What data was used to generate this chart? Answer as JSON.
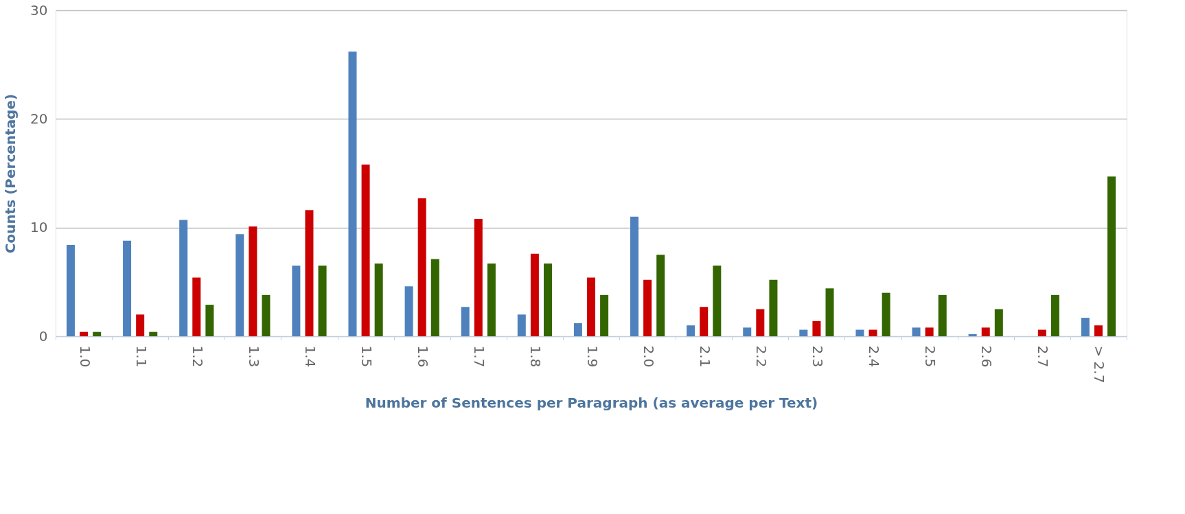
{
  "chart_data": {
    "type": "bar",
    "xlabel": "Number of Sentences per Paragraph (as average per Text)",
    "ylabel": "Counts (Percentage)",
    "categories": [
      "1.0",
      "1.1",
      "1.2",
      "1.3",
      "1.4",
      "1.5",
      "1.6",
      "1.7",
      "1.8",
      "1.9",
      "2.0",
      "2.1",
      "2.2",
      "2.3",
      "2.4",
      "2.5",
      "2.6",
      "2.7",
      "> 2.7"
    ],
    "series": [
      {
        "color": "#4f81bd",
        "values": [
          8.4,
          8.8,
          10.7,
          9.4,
          6.5,
          26.2,
          4.6,
          2.7,
          2.0,
          1.2,
          11.0,
          1.0,
          0.8,
          0.6,
          0.6,
          0.8,
          0.2,
          0,
          1.7
        ]
      },
      {
        "color": "#cc0000",
        "values": [
          0.4,
          2.0,
          5.4,
          10.1,
          11.6,
          15.8,
          12.7,
          10.8,
          7.6,
          5.4,
          5.2,
          2.7,
          2.5,
          1.4,
          0.6,
          0.8,
          0.8,
          0.6,
          1.0
        ]
      },
      {
        "color": "#336600",
        "values": [
          0.4,
          0.4,
          2.9,
          3.8,
          6.5,
          6.7,
          7.1,
          6.7,
          6.7,
          3.8,
          7.5,
          6.5,
          5.2,
          4.4,
          4.0,
          3.8,
          2.5,
          3.8,
          14.7
        ]
      }
    ],
    "ylim": [
      0,
      30
    ],
    "yticks": [
      0,
      10,
      20,
      30
    ],
    "grid": "y",
    "legend": false
  }
}
